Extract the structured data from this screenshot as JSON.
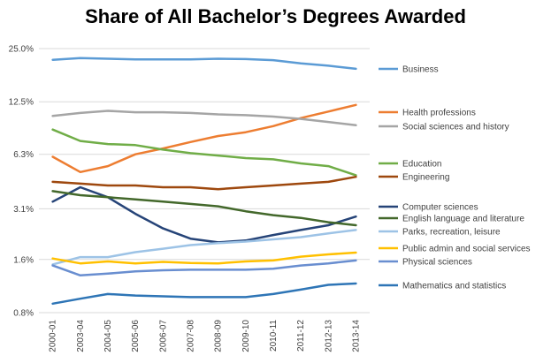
{
  "chart_data": {
    "type": "line",
    "title": "Share of All Bachelor’s Degrees Awarded",
    "xlabel": "",
    "ylabel": "",
    "y_scale": "log2",
    "ylim": [
      0.8,
      25.0
    ],
    "y_ticks": [
      0.8,
      1.6,
      3.1,
      6.3,
      12.5,
      25.0
    ],
    "y_tick_labels": [
      "0.8%",
      "1.6%",
      "3.1%",
      "6.3%",
      "12.5%",
      "25.0%"
    ],
    "grid": "horizontal",
    "legend_position": "right",
    "categories": [
      "2000-01",
      "2003-04",
      "2004-05",
      "2005-06",
      "2006-07",
      "2007-08",
      "2008-09",
      "2009-10",
      "2010-11",
      "2011-12",
      "2012-13",
      "2013-14"
    ],
    "series": [
      {
        "name": "Business",
        "color": "#5b9bd5",
        "values": [
          21.6,
          22.1,
          21.9,
          21.7,
          21.7,
          21.7,
          21.9,
          21.8,
          21.5,
          20.6,
          20.0,
          19.2
        ]
      },
      {
        "name": "Health professions",
        "color": "#ed7d31",
        "values": [
          6.1,
          5.0,
          5.4,
          6.3,
          6.8,
          7.4,
          8.0,
          8.4,
          9.1,
          10.1,
          11.0,
          12.0
        ]
      },
      {
        "name": "Social sciences and history",
        "color": "#a5a5a5",
        "values": [
          10.4,
          10.8,
          11.1,
          10.9,
          10.9,
          10.8,
          10.6,
          10.5,
          10.3,
          10.0,
          9.6,
          9.2
        ]
      },
      {
        "name": "Education",
        "color": "#70ad47",
        "values": [
          8.7,
          7.5,
          7.2,
          7.1,
          6.7,
          6.4,
          6.2,
          6.0,
          5.9,
          5.6,
          5.4,
          4.8
        ]
      },
      {
        "name": "Engineering",
        "color": "#9e480e",
        "values": [
          4.4,
          4.3,
          4.2,
          4.2,
          4.1,
          4.1,
          4.0,
          4.1,
          4.2,
          4.3,
          4.4,
          4.7
        ]
      },
      {
        "name": "Computer sciences",
        "color": "#264478",
        "values": [
          3.4,
          4.1,
          3.6,
          2.9,
          2.4,
          2.1,
          2.0,
          2.05,
          2.2,
          2.35,
          2.5,
          2.8
        ]
      },
      {
        "name": "English language and literature",
        "color": "#43682b",
        "values": [
          3.9,
          3.7,
          3.6,
          3.5,
          3.4,
          3.3,
          3.2,
          3.0,
          2.85,
          2.75,
          2.6,
          2.5
        ]
      },
      {
        "name": "Parks, recreation, leisure",
        "color": "#9dc3e6",
        "values": [
          1.5,
          1.65,
          1.65,
          1.76,
          1.84,
          1.93,
          1.98,
          2.02,
          2.08,
          2.14,
          2.25,
          2.35
        ]
      },
      {
        "name": "Public admin and social services",
        "color": "#ffc000",
        "values": [
          1.62,
          1.52,
          1.56,
          1.52,
          1.55,
          1.53,
          1.52,
          1.56,
          1.58,
          1.66,
          1.71,
          1.75
        ]
      },
      {
        "name": "Physical sciences",
        "color": "#698ed0",
        "values": [
          1.48,
          1.3,
          1.33,
          1.37,
          1.39,
          1.4,
          1.4,
          1.4,
          1.42,
          1.48,
          1.52,
          1.58
        ]
      },
      {
        "name": "Mathematics and statistics",
        "color": "#2e75b6",
        "values": [
          0.9,
          0.96,
          1.02,
          1.0,
          0.99,
          0.98,
          0.98,
          0.98,
          1.02,
          1.08,
          1.15,
          1.17
        ]
      }
    ]
  }
}
